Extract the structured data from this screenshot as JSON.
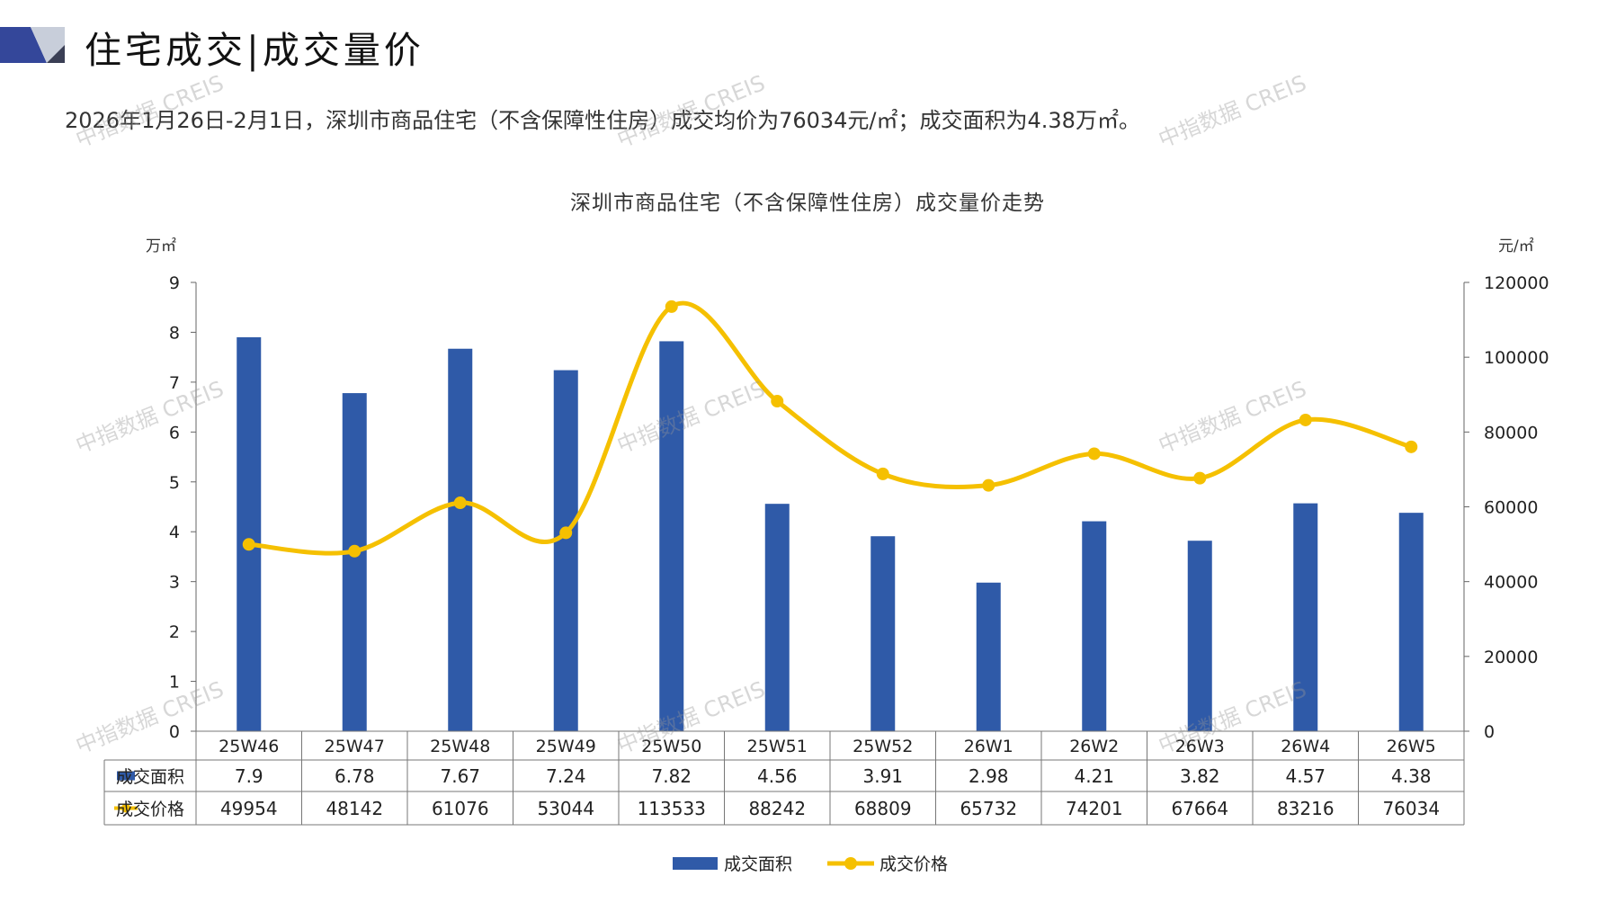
{
  "header": {
    "title": "住宅成交|成交量价",
    "subtitle": "2026年1月26日-2月1日，深圳市商品住宅（不含保障性住房）成交均价为76034元/㎡；成交面积为4.38万㎡。"
  },
  "watermark": "中指数据 CREIS",
  "colors": {
    "bar": "#2F5AA8",
    "line": "#F5C000",
    "logo_dark": "#34479A",
    "logo_light": "#C8CEDA"
  },
  "chart_data": {
    "type": "bar",
    "title": "深圳市商品住宅（不含保障性住房）成交量价走势",
    "categories": [
      "25W46",
      "25W47",
      "25W48",
      "25W49",
      "25W50",
      "25W51",
      "25W52",
      "26W1",
      "26W2",
      "26W3",
      "26W4",
      "26W5"
    ],
    "series": [
      {
        "name": "成交面积",
        "type": "bar",
        "axis": "left",
        "values": [
          7.9,
          6.78,
          7.67,
          7.24,
          7.82,
          4.56,
          3.91,
          2.98,
          4.21,
          3.82,
          4.57,
          4.38
        ]
      },
      {
        "name": "成交价格",
        "type": "line",
        "axis": "right",
        "values": [
          49954,
          48142,
          61076,
          53044,
          113533,
          88242,
          68809,
          65732,
          74201,
          67664,
          83216,
          76034
        ]
      }
    ],
    "table_labels": [
      "7.9",
      "6.78",
      "7.67",
      "7.24",
      "7.82",
      "4.56",
      "3.91",
      "2.98",
      "4.21",
      "3.82",
      "4.57",
      "4.38"
    ],
    "ylabel_left": "万㎡",
    "ylabel_right": "元/㎡",
    "ylim_left": [
      0,
      9
    ],
    "yticks_left": [
      0,
      1,
      2,
      3,
      4,
      5,
      6,
      7,
      8,
      9
    ],
    "ylim_right": [
      0,
      120000
    ],
    "yticks_right": [
      0,
      20000,
      40000,
      60000,
      80000,
      100000,
      120000
    ],
    "legend_position": "bottom-center",
    "data_table": true
  }
}
